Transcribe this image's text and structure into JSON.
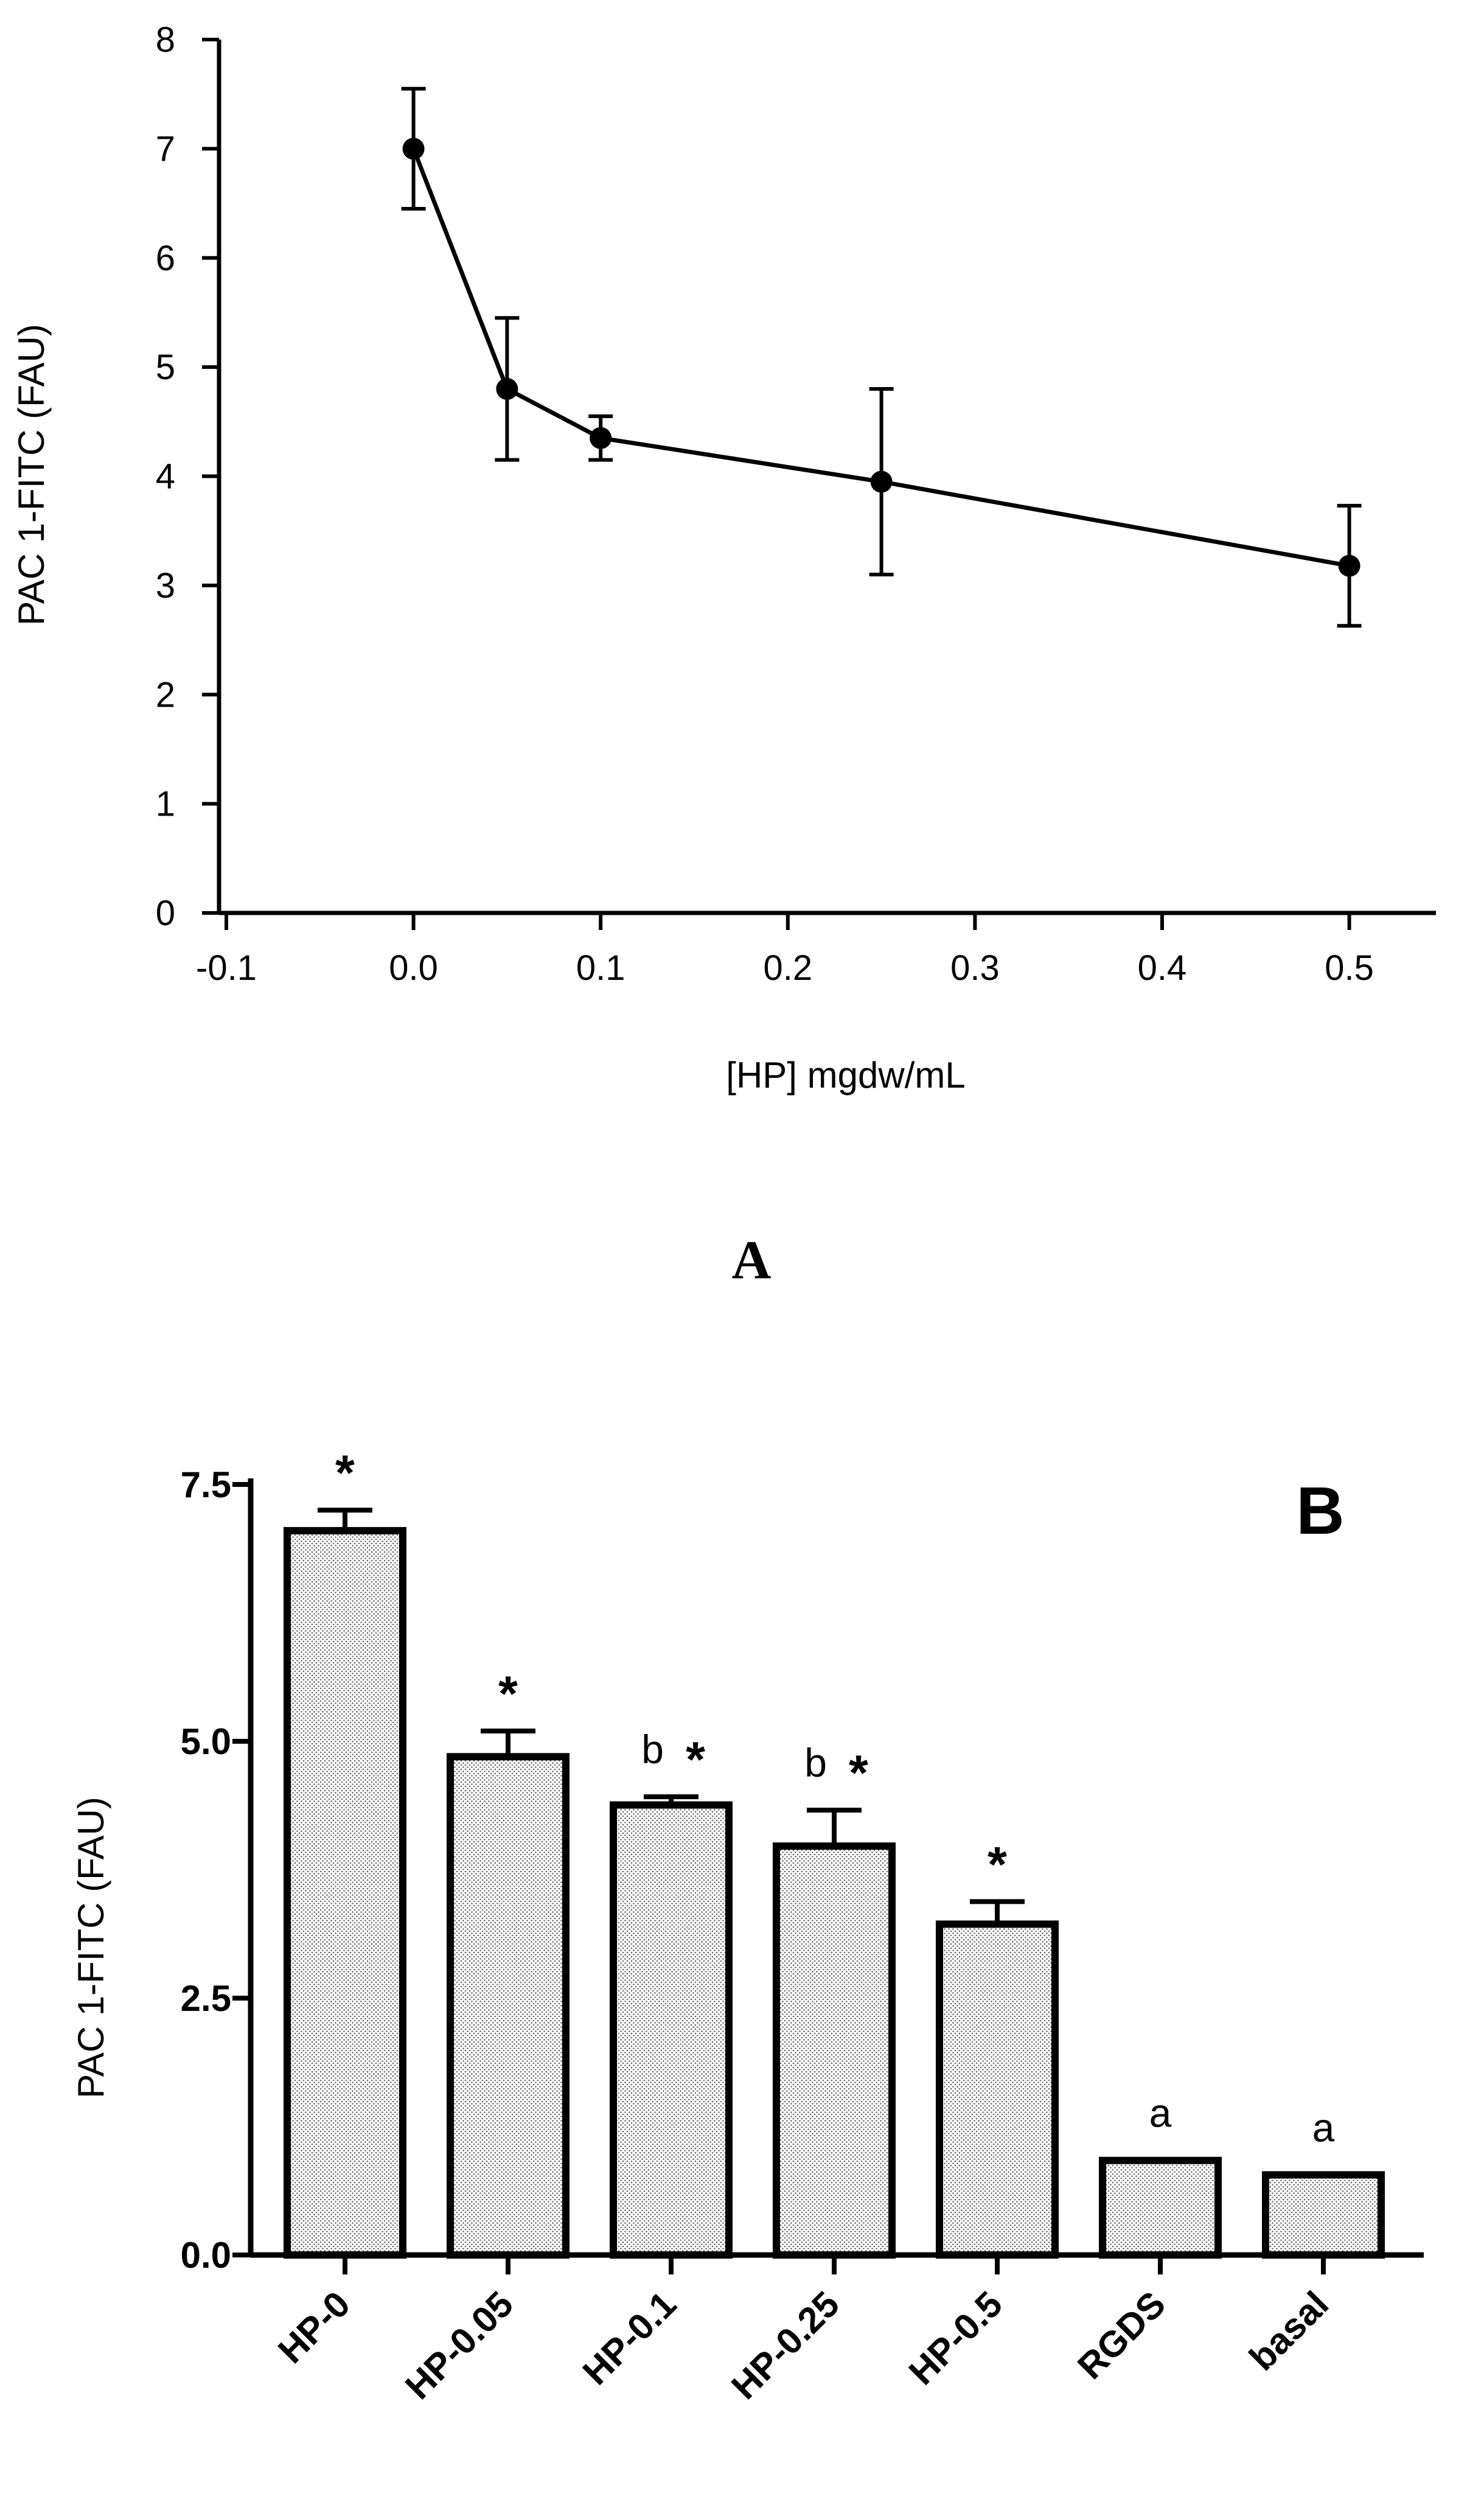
{
  "chart_data": [
    {
      "panel": "A",
      "type": "line",
      "panel_label": "A",
      "xlabel": "[HP] mgdw/mL",
      "ylabel": "PAC 1-FITC (FAU)",
      "xlim": [
        -0.1,
        0.55
      ],
      "ylim": [
        0,
        8
      ],
      "xticks": [
        -0.1,
        0.0,
        0.1,
        0.2,
        0.3,
        0.4,
        0.5
      ],
      "xtick_labels": [
        "-0.1",
        "0.0",
        "0.1",
        "0.2",
        "0.3",
        "0.4",
        "0.5"
      ],
      "yticks": [
        0,
        1,
        2,
        3,
        4,
        5,
        6,
        7,
        8
      ],
      "ytick_labels": [
        "0",
        "1",
        "2",
        "3",
        "4",
        "5",
        "6",
        "7",
        "8"
      ],
      "x": [
        0.0,
        0.05,
        0.1,
        0.25,
        0.5
      ],
      "y": [
        7.0,
        4.8,
        4.35,
        3.95,
        3.18
      ],
      "error": [
        0.55,
        0.65,
        0.2,
        0.85,
        0.55
      ],
      "grid": false
    },
    {
      "panel": "B",
      "type": "bar",
      "panel_label": "B",
      "xlabel": "",
      "ylabel": "PAC 1-FITC (FAU)",
      "ylim": [
        0,
        7.5
      ],
      "yticks": [
        0,
        2.5,
        5,
        7.5
      ],
      "ytick_labels": [
        "0.0",
        "2.5",
        "5.0",
        "7.5"
      ],
      "categories": [
        "HP-0",
        "HP-0.05",
        "HP-0.1",
        "HP-0.25",
        "HP-0.5",
        "RGDS",
        "basal"
      ],
      "values": [
        7.05,
        4.85,
        4.38,
        3.98,
        3.22,
        0.92,
        0.78
      ],
      "error": [
        0.2,
        0.25,
        0.08,
        0.35,
        0.22,
        0,
        0
      ],
      "annotations": [
        {
          "letter": "",
          "star": "*"
        },
        {
          "letter": "",
          "star": "*"
        },
        {
          "letter": "b",
          "star": "*"
        },
        {
          "letter": "b",
          "star": "*"
        },
        {
          "letter": "",
          "star": "*"
        },
        {
          "letter": "a",
          "star": ""
        },
        {
          "letter": "a",
          "star": ""
        }
      ],
      "grid": false
    }
  ]
}
